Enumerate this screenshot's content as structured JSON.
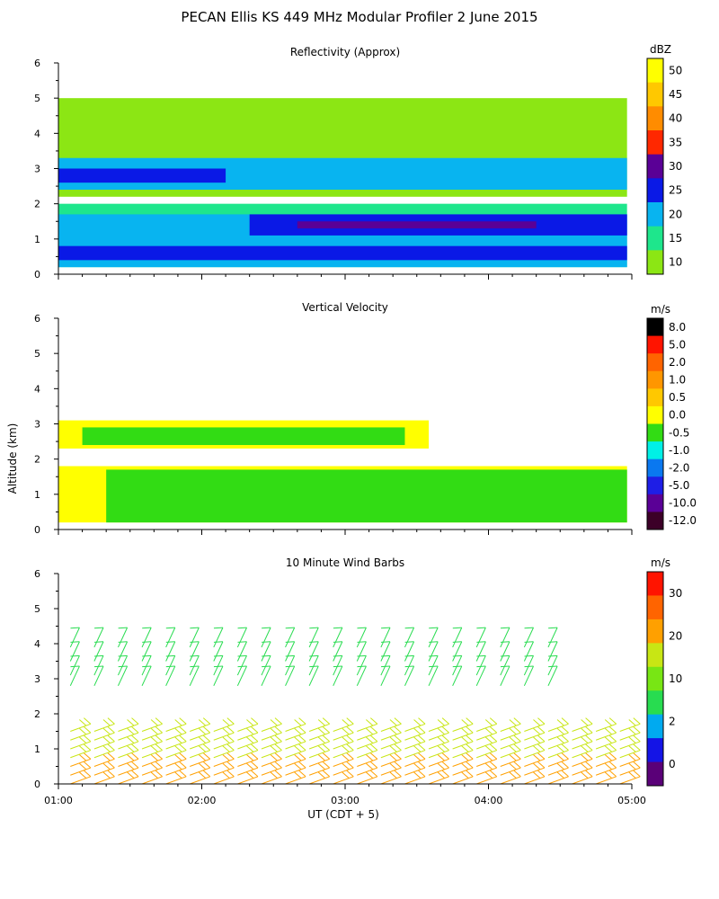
{
  "figure": {
    "title": "PECAN Ellis KS 449 MHz Modular Profiler  2 June 2015",
    "ylabel": "Altitude (km)",
    "xlabel": "UT  (CDT + 5)"
  },
  "chart_data": [
    {
      "type": "heatmap",
      "title": "Reflectivity (Approx)",
      "x_ticks": [
        "01:00",
        "02:00",
        "03:00",
        "04:00",
        "05:00"
      ],
      "xlim": [
        "01:00",
        "05:00"
      ],
      "ylim": [
        0,
        6
      ],
      "y_ticks": [
        "0",
        "1",
        "2",
        "3",
        "4",
        "5",
        "6"
      ],
      "colorbar_unit": "dBZ",
      "colorbar_ticks": [
        "50",
        "45",
        "40",
        "35",
        "30",
        "25",
        "20",
        "15",
        "10"
      ],
      "colorbar_colors": [
        "#ffff00",
        "#ffc800",
        "#ff8c00",
        "#ff2800",
        "#5a0096",
        "#0a19e6",
        "#08b4f0",
        "#1ee68c",
        "#8ce614"
      ],
      "layers": [
        {
          "t_start": "01:00",
          "t_end": "04:58",
          "z_bottom": 2.2,
          "z_top": 5.0,
          "dbz": 10
        },
        {
          "t_start": "01:00",
          "t_end": "04:58",
          "z_bottom": 2.4,
          "z_top": 3.3,
          "dbz": 20
        },
        {
          "t_start": "01:00",
          "t_end": "02:10",
          "z_bottom": 2.6,
          "z_top": 3.0,
          "dbz": 25
        },
        {
          "t_start": "01:00",
          "t_end": "04:58",
          "z_bottom": 0.2,
          "z_top": 2.0,
          "dbz": 15
        },
        {
          "t_start": "01:00",
          "t_end": "04:58",
          "z_bottom": 0.2,
          "z_top": 1.7,
          "dbz": 20
        },
        {
          "t_start": "02:20",
          "t_end": "04:58",
          "z_bottom": 1.1,
          "z_top": 1.7,
          "dbz": 25
        },
        {
          "t_start": "02:40",
          "t_end": "04:20",
          "z_bottom": 1.3,
          "z_top": 1.5,
          "dbz": 30
        },
        {
          "t_start": "01:00",
          "t_end": "04:58",
          "z_bottom": 0.4,
          "z_top": 0.8,
          "dbz": 25
        }
      ]
    },
    {
      "type": "heatmap",
      "title": "Vertical Velocity",
      "x_ticks": [
        "01:00",
        "02:00",
        "03:00",
        "04:00",
        "05:00"
      ],
      "xlim": [
        "01:00",
        "05:00"
      ],
      "ylim": [
        0,
        6
      ],
      "y_ticks": [
        "0",
        "1",
        "2",
        "3",
        "4",
        "5",
        "6"
      ],
      "colorbar_unit": "m/s",
      "colorbar_ticks": [
        "8.0",
        "5.0",
        "2.0",
        "1.0",
        "0.5",
        "0.0",
        "-0.5",
        "-1.0",
        "-2.0",
        "-5.0",
        "-10.0",
        "-12.0"
      ],
      "colorbar_colors": [
        "#000000",
        "#ff1400",
        "#ff6400",
        "#ff9600",
        "#ffc800",
        "#ffff00",
        "#32dc14",
        "#00f0e6",
        "#0a78f0",
        "#1e1ee6",
        "#5a0096",
        "#3c0028"
      ],
      "layers": [
        {
          "t_start": "01:00",
          "t_end": "04:58",
          "z_bottom": 0.2,
          "z_top": 1.8,
          "w": 0.0
        },
        {
          "t_start": "01:00",
          "t_end": "03:35",
          "z_bottom": 2.3,
          "z_top": 3.1,
          "w": 0.0
        },
        {
          "t_start": "01:20",
          "t_end": "04:58",
          "z_bottom": 0.2,
          "z_top": 1.7,
          "w": -0.5
        },
        {
          "t_start": "01:10",
          "t_end": "03:25",
          "z_bottom": 2.4,
          "z_top": 2.9,
          "w": -0.5
        }
      ]
    },
    {
      "type": "wind_barbs",
      "title": "10 Minute Wind Barbs",
      "x_ticks": [
        "01:00",
        "02:00",
        "03:00",
        "04:00",
        "05:00"
      ],
      "xlim": [
        "01:00",
        "05:00"
      ],
      "ylim": [
        0,
        6
      ],
      "y_ticks": [
        "0",
        "1",
        "2",
        "3",
        "4",
        "5",
        "6"
      ],
      "colorbar_unit": "m/s",
      "colorbar_ticks": [
        "30",
        "20",
        "10",
        "2",
        "0"
      ],
      "colorbar_colors": [
        "#ff1400",
        "#ff6400",
        "#ffa000",
        "#c8e614",
        "#78e614",
        "#28dc50",
        "#00aaf0",
        "#1414e6",
        "#5a0078"
      ],
      "barb_times_min": [
        0,
        10,
        20,
        30,
        40,
        50,
        60,
        70,
        80,
        90,
        100,
        110,
        120,
        130,
        140,
        150,
        160,
        170,
        180,
        190,
        200,
        210,
        220,
        230
      ],
      "barb_levels_km": [
        0.0,
        0.25,
        0.5,
        0.75,
        1.0,
        1.25,
        1.5,
        2.8,
        3.1,
        3.5,
        3.9
      ],
      "low_level_speed_ms": 20,
      "mid_level_speed_ms": 10
    }
  ]
}
